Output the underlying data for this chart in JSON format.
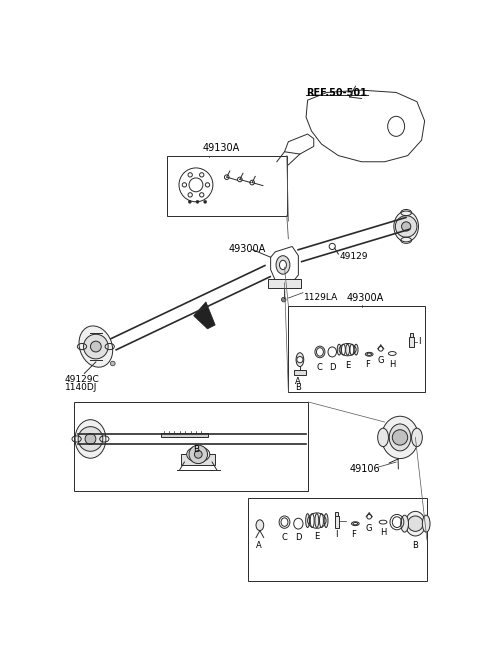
{
  "bg_color": "#ffffff",
  "line_color": "#2a2a2a",
  "labels": {
    "ref_50_501": "REF.50-501",
    "part_49130A": "49130A",
    "part_49300A_1": "49300A",
    "part_49129": "49129",
    "part_49300A_2": "49300A",
    "part_1129LA": "1129LA",
    "part_49129C": "49129C",
    "part_1140DJ": "1140DJ",
    "part_49106": "49106"
  }
}
